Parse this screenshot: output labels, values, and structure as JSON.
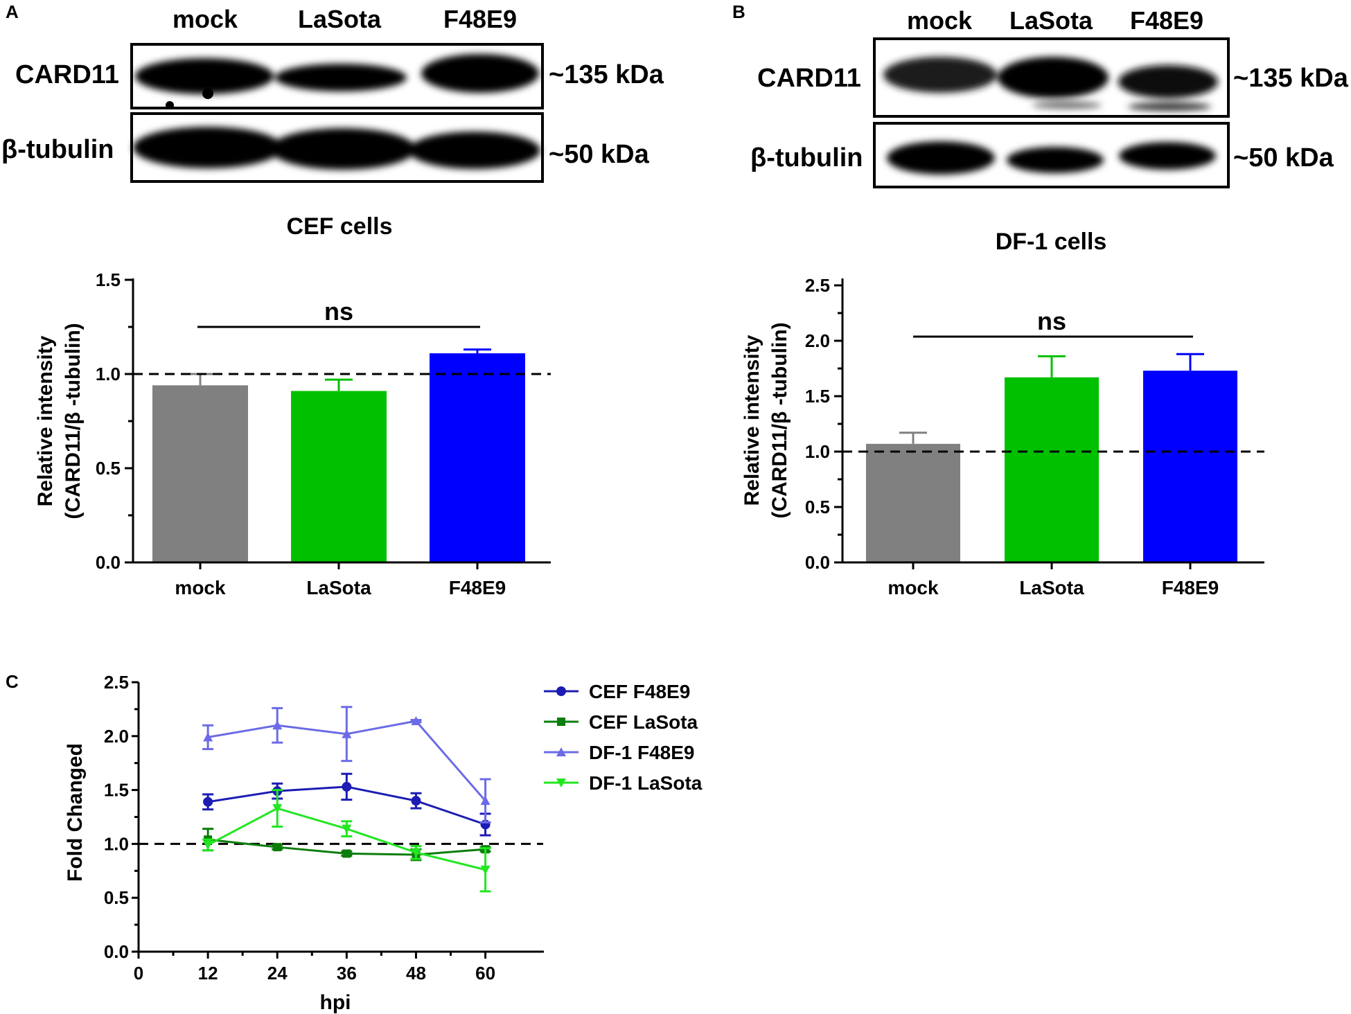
{
  "panels": {
    "a": {
      "letter": "A",
      "lane_labels": [
        "mock",
        "LaSota",
        "F48E9"
      ],
      "blots": [
        {
          "protein": "CARD11",
          "size": "~135 kDa"
        },
        {
          "protein": "β-tubulin",
          "size": "~50 kDa"
        }
      ],
      "title": "CEF cells"
    },
    "b": {
      "letter": "B",
      "lane_labels": [
        "mock",
        "LaSota",
        "F48E9"
      ],
      "blots": [
        {
          "protein": "CARD11",
          "size": "~135 kDa"
        },
        {
          "protein": "β-tubulin",
          "size": "~50 kDa"
        }
      ],
      "title": "DF-1 cells"
    },
    "c": {
      "letter": "C"
    }
  },
  "chart_data": [
    {
      "type": "bar",
      "panel": "A",
      "title": "CEF cells",
      "categories": [
        "mock",
        "LaSota",
        "F48E9"
      ],
      "values": [
        0.94,
        0.91,
        1.11
      ],
      "errors": [
        0.06,
        0.06,
        0.02
      ],
      "colors": [
        "#808080",
        "#00c000",
        "#0000ff"
      ],
      "ylabel_lines": [
        "Relative intensity",
        "(CARD11/β -tubulin)"
      ],
      "ylim": [
        0,
        1.5
      ],
      "yticks": [
        0.0,
        0.5,
        1.0,
        1.5
      ],
      "ytick_labels": [
        "0.0",
        "0.5",
        "1.0",
        "1.5"
      ],
      "reference_line": 1.0,
      "significance": {
        "label": "ns",
        "from": "mock",
        "to": "F48E9"
      }
    },
    {
      "type": "bar",
      "panel": "B",
      "title": "DF-1 cells",
      "categories": [
        "mock",
        "LaSota",
        "F48E9"
      ],
      "values": [
        1.07,
        1.67,
        1.73
      ],
      "errors": [
        0.1,
        0.19,
        0.15
      ],
      "colors": [
        "#808080",
        "#00c000",
        "#0000ff"
      ],
      "ylabel_lines": [
        "Relative intensity",
        "(CARD11/β -tubulin)"
      ],
      "ylim": [
        0,
        2.5
      ],
      "yticks": [
        0.0,
        0.5,
        1.0,
        1.5,
        2.0,
        2.5
      ],
      "ytick_labels": [
        "0.0",
        "0.5",
        "1.0",
        "1.5",
        "2.0",
        "2.5"
      ],
      "reference_line": 1.0,
      "significance": {
        "label": "ns",
        "from": "mock",
        "to": "F48E9"
      }
    },
    {
      "type": "line",
      "panel": "C",
      "xlabel": "hpi",
      "ylabel": "Fold Changed",
      "x": [
        12,
        24,
        36,
        48,
        60
      ],
      "xlim": [
        0,
        70
      ],
      "xticks": [
        0,
        12,
        24,
        36,
        48,
        60
      ],
      "xtick_labels": [
        "0",
        "12",
        "24",
        "36",
        "48",
        "60"
      ],
      "ylim": [
        0,
        2.5
      ],
      "yticks": [
        0.0,
        0.5,
        1.0,
        1.5,
        2.0,
        2.5
      ],
      "ytick_labels": [
        "0.0",
        "0.5",
        "1.0",
        "1.5",
        "2.0",
        "2.5"
      ],
      "reference_line": 1.0,
      "legend_position": "top-right",
      "series": [
        {
          "name": "CEF F48E9",
          "marker": "circle",
          "color": "#1c1cb4",
          "values": [
            1.39,
            1.49,
            1.53,
            1.4,
            1.18
          ],
          "errors": [
            0.07,
            0.07,
            0.12,
            0.07,
            0.1
          ]
        },
        {
          "name": "CEF LaSota",
          "marker": "square",
          "color": "#0b7d0b",
          "values": [
            1.04,
            0.97,
            0.91,
            0.9,
            0.95
          ],
          "errors": [
            0.1,
            0.02,
            0.02,
            0.05,
            0.02
          ]
        },
        {
          "name": "DF-1 F48E9",
          "marker": "triangle-up",
          "color": "#6b6be6",
          "values": [
            1.99,
            2.1,
            2.02,
            2.14,
            1.4
          ],
          "errors": [
            0.11,
            0.16,
            0.25,
            0.01,
            0.2
          ]
        },
        {
          "name": "DF-1 LaSota",
          "marker": "triangle-down",
          "color": "#22e622",
          "values": [
            0.99,
            1.33,
            1.14,
            0.92,
            0.76
          ],
          "errors": [
            0.05,
            0.17,
            0.07,
            0.06,
            0.2
          ]
        }
      ]
    }
  ]
}
